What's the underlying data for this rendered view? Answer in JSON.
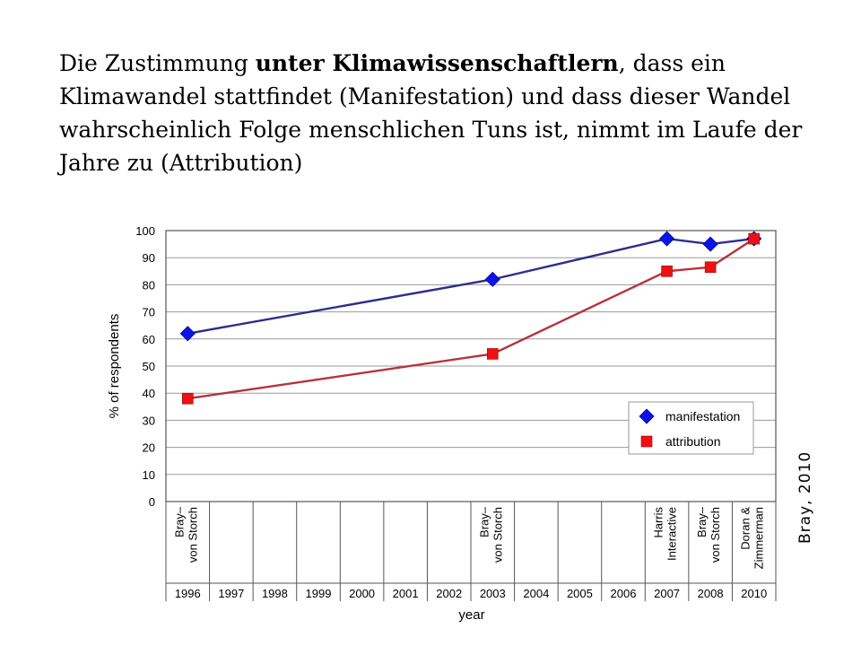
{
  "slide": {
    "title_part1": "Die Zustimmung ",
    "title_bold": "unter Klimawissenschaftlern",
    "title_part2": ", dass ein Klimawandel stattfindet (Manifestation) und dass dieser Wandel wahrscheinlich Folge menschlichen Tuns ist, nimmt im Laufe der Jahre zu (Attribution)",
    "credit": "Bray, 2010"
  },
  "chart_data": {
    "type": "line",
    "xlabel": "year",
    "ylabel": "% of respondents",
    "ylim": [
      0,
      100
    ],
    "yticks": [
      0,
      10,
      20,
      30,
      40,
      50,
      60,
      70,
      80,
      90,
      100
    ],
    "grid": true,
    "legend_position": "lower-right",
    "categories": [
      "1996",
      "1997",
      "1998",
      "1999",
      "2000",
      "2001",
      "2002",
      "2003",
      "2004",
      "2005",
      "2006",
      "2007",
      "2008",
      "2010"
    ],
    "surveys": [
      {
        "category": "1996",
        "label": [
          "Bray–",
          "von Storch"
        ]
      },
      {
        "category": "2003",
        "label": [
          "Bray–",
          "von Storch"
        ]
      },
      {
        "category": "2007",
        "label": [
          "Harris",
          "Interactive"
        ]
      },
      {
        "category": "2008",
        "label": [
          "Bray–",
          "von Storch"
        ]
      },
      {
        "category": "2010",
        "label": [
          "Doran &",
          "Zimmerman"
        ]
      }
    ],
    "series": [
      {
        "name": "manifestation",
        "color": "#2b2e8c",
        "marker_color": "#0a14e6",
        "marker": "diamond",
        "x": [
          "1996",
          "2003",
          "2007",
          "2008",
          "2010"
        ],
        "values": [
          62,
          82,
          97,
          95,
          97
        ]
      },
      {
        "name": "attribution",
        "color": "#b5333a",
        "marker_color": "#ee1111",
        "marker": "square",
        "x": [
          "1996",
          "2003",
          "2007",
          "2008",
          "2010"
        ],
        "values": [
          38,
          54.5,
          85,
          86.5,
          97
        ]
      }
    ]
  }
}
